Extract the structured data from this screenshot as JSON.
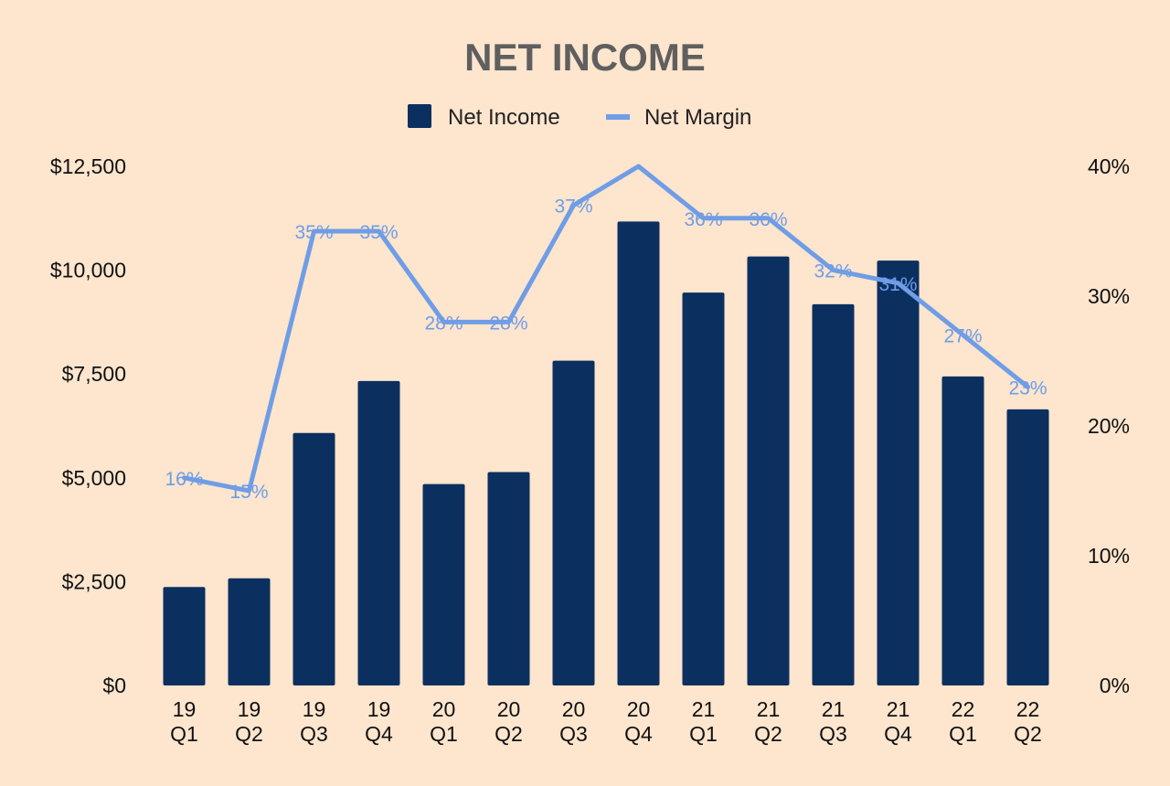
{
  "chart_data": {
    "type": "bar",
    "title": "NET INCOME",
    "legend": {
      "position": "top-center",
      "items": [
        {
          "label": "Net Income",
          "marker": "square"
        },
        {
          "label": "Net Margin",
          "marker": "line"
        }
      ]
    },
    "categories": [
      {
        "year": "19",
        "quarter": "Q1"
      },
      {
        "year": "19",
        "quarter": "Q2"
      },
      {
        "year": "19",
        "quarter": "Q3"
      },
      {
        "year": "19",
        "quarter": "Q4"
      },
      {
        "year": "20",
        "quarter": "Q1"
      },
      {
        "year": "20",
        "quarter": "Q2"
      },
      {
        "year": "20",
        "quarter": "Q3"
      },
      {
        "year": "20",
        "quarter": "Q4"
      },
      {
        "year": "21",
        "quarter": "Q1"
      },
      {
        "year": "21",
        "quarter": "Q2"
      },
      {
        "year": "21",
        "quarter": "Q3"
      },
      {
        "year": "21",
        "quarter": "Q4"
      },
      {
        "year": "22",
        "quarter": "Q1"
      },
      {
        "year": "22",
        "quarter": "Q2"
      }
    ],
    "series": [
      {
        "name": "Net Income",
        "type": "bar",
        "axis": "left",
        "color": "#0b3060",
        "values": [
          2370,
          2580,
          6080,
          7330,
          4850,
          5140,
          7820,
          11170,
          9460,
          10330,
          9180,
          10230,
          7440,
          6650
        ]
      },
      {
        "name": "Net Margin",
        "type": "line",
        "axis": "right",
        "color": "#6f9de6",
        "values": [
          16,
          15,
          35,
          35,
          28,
          28,
          37,
          40,
          36,
          36,
          32,
          31,
          27,
          23
        ],
        "labels": [
          "16%",
          "15%",
          "35%",
          "35%",
          "28%",
          "28%",
          "37%",
          "",
          "36%",
          "36%",
          "32%",
          "31%",
          "27%",
          "23%"
        ]
      }
    ],
    "y_left": {
      "ylim": [
        0,
        12500
      ],
      "ticks": [
        0,
        2500,
        5000,
        7500,
        10000,
        12500
      ],
      "tick_labels": [
        "$0",
        "$2,500",
        "$5,000",
        "$7,500",
        "$10,000",
        "$12,500"
      ]
    },
    "y_right": {
      "ylim": [
        0,
        40
      ],
      "ticks": [
        0,
        10,
        20,
        30,
        40
      ],
      "tick_labels": [
        "0%",
        "10%",
        "20%",
        "30%",
        "40%"
      ]
    },
    "grid": false
  }
}
